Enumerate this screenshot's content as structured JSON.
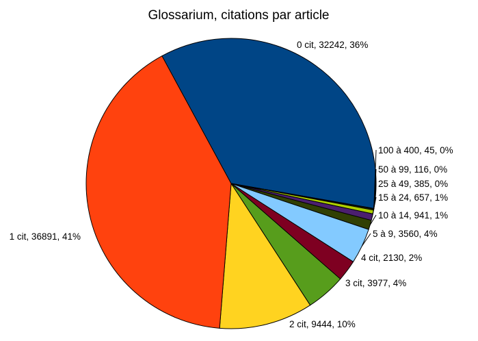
{
  "chart_data": {
    "type": "pie",
    "title": "Glossarium, citations par article",
    "slices": [
      {
        "label": "0 cit, 32242, 36%",
        "name": "0 cit",
        "value": 32242,
        "percent": 36,
        "color": "#004586"
      },
      {
        "label": "100 à 400, 45, 0%",
        "name": "100 à 400",
        "value": 45,
        "percent": 0,
        "color": "#83caff"
      },
      {
        "label": "50 à 99, 116, 0%",
        "name": "50 à 99",
        "value": 116,
        "percent": 0,
        "color": "#314004"
      },
      {
        "label": "25 à 49, 385, 0%",
        "name": "25 à 49",
        "value": 385,
        "percent": 0,
        "color": "#aecf00"
      },
      {
        "label": "15 à 24, 657, 1%",
        "name": "15 à 24",
        "value": 657,
        "percent": 1,
        "color": "#4b1f6f"
      },
      {
        "label": "10 à 14, 941, 1%",
        "name": "10 à 14",
        "value": 941,
        "percent": 1,
        "color": "#314004"
      },
      {
        "label": "5 à 9, 3560, 4%",
        "name": "5 à 9",
        "value": 3560,
        "percent": 4,
        "color": "#83caff"
      },
      {
        "label": "4 cit, 2130, 2%",
        "name": "4 cit",
        "value": 2130,
        "percent": 2,
        "color": "#7e0021"
      },
      {
        "label": "3 cit, 3977, 4%",
        "name": "3 cit",
        "value": 3977,
        "percent": 4,
        "color": "#579d1c"
      },
      {
        "label": "2 cit, 9444, 10%",
        "name": "2 cit",
        "value": 9444,
        "percent": 10,
        "color": "#ffd320"
      },
      {
        "label": "1 cit, 36891, 41%",
        "name": "1 cit",
        "value": 36891,
        "percent": 41,
        "color": "#ff420e"
      }
    ],
    "legend": "none"
  }
}
